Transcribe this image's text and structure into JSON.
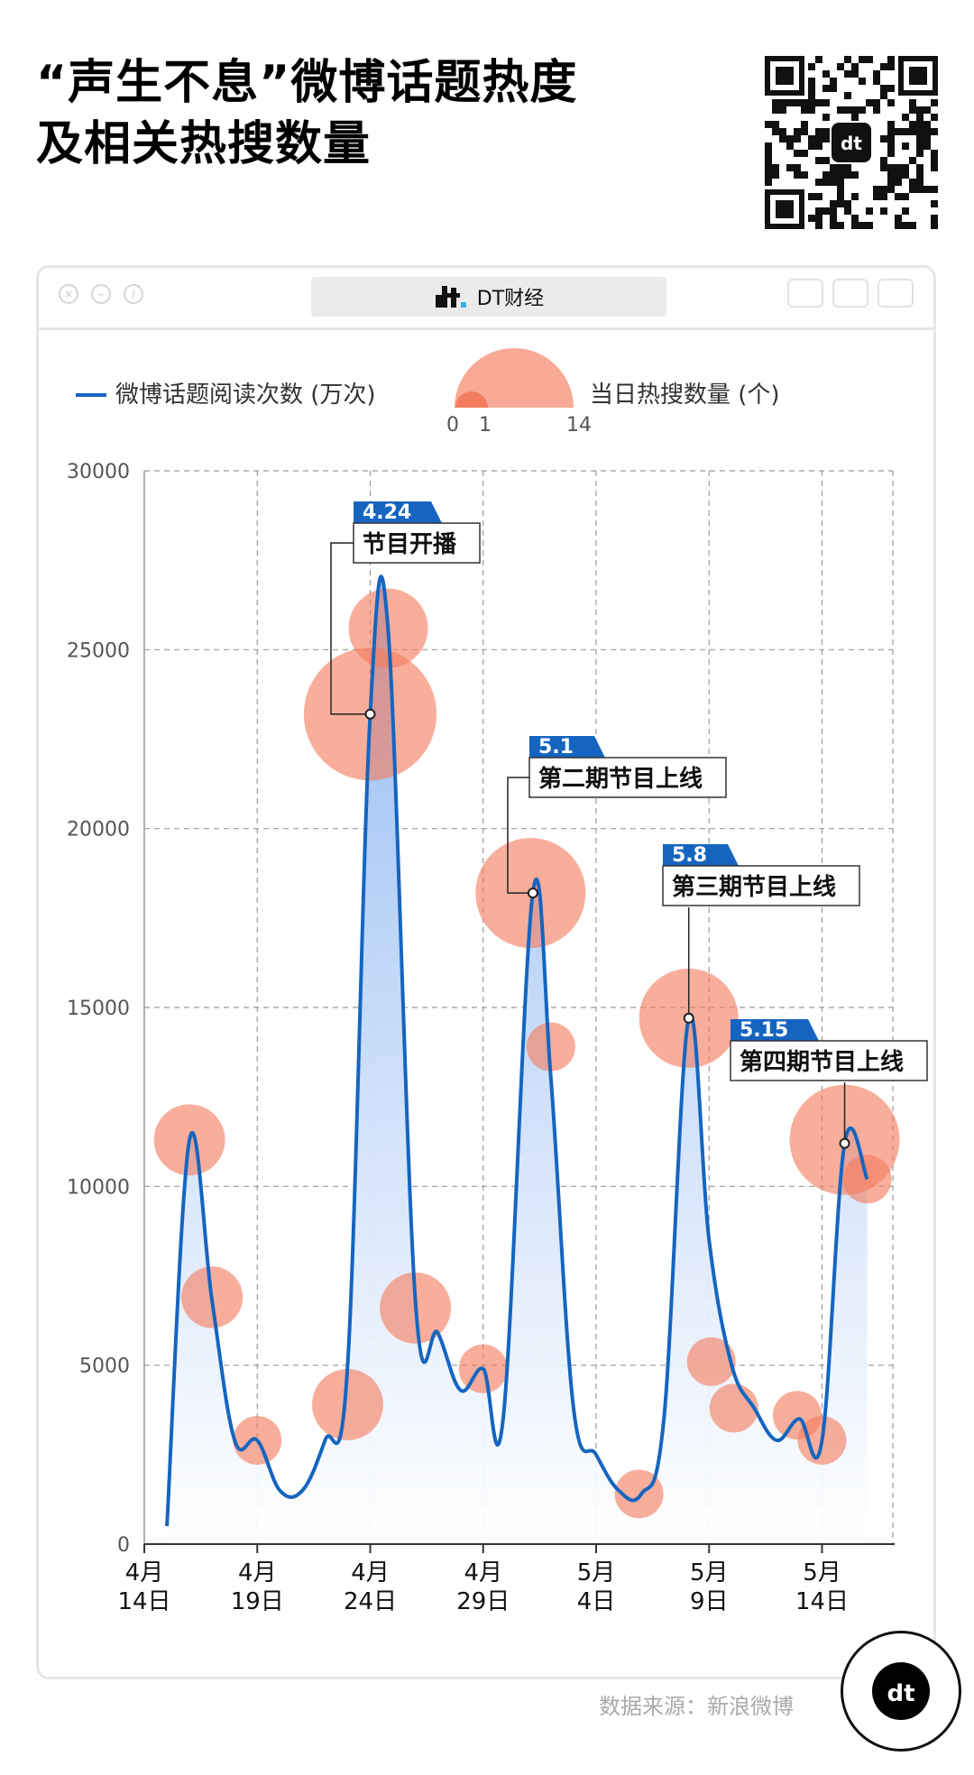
{
  "header": {
    "title_line1": "“声生不息”微博话题热度",
    "title_line2": "及相关热搜数量"
  },
  "window": {
    "tab_label": "DT财经",
    "brand_icon": "dt-logo-icon"
  },
  "source_note": "数据来源：新浪微博",
  "colors": {
    "line": "#1565c0",
    "area_top": "#8fb8f2",
    "area_bottom": "#ffffff",
    "bubble": "#f47c5e",
    "annotation": "#1565c0",
    "grid": "#9a9a9a"
  },
  "chart_data": {
    "type": "line",
    "legend": {
      "line_label": "微博话题阅读次数 (万次)",
      "bubble_label": "当日热搜数量 (个)",
      "bubble_scale": [
        "0",
        "1",
        "14"
      ]
    },
    "ylim": [
      0,
      30000
    ],
    "y_ticks": [
      "0",
      "5000",
      "10000",
      "15000",
      "20000",
      "25000",
      "30000"
    ],
    "x_ticks": [
      {
        "month": "4月",
        "day": "14日",
        "x": 0
      },
      {
        "month": "4月",
        "day": "19日",
        "x": 5
      },
      {
        "month": "4月",
        "day": "24日",
        "x": 10
      },
      {
        "month": "4月",
        "day": "29日",
        "x": 15
      },
      {
        "month": "5月",
        "day": "4日",
        "x": 20
      },
      {
        "month": "5月",
        "day": "9日",
        "x": 25
      },
      {
        "month": "5月",
        "day": "14日",
        "x": 30
      }
    ],
    "series": [
      {
        "name": "微博话题阅读次数 (万次)",
        "points": [
          [
            1,
            500
          ],
          [
            2,
            11300
          ],
          [
            3,
            6800
          ],
          [
            4,
            2900
          ],
          [
            5,
            2900
          ],
          [
            6,
            1500
          ],
          [
            7,
            1500
          ],
          [
            8,
            2900
          ],
          [
            9,
            5000
          ],
          [
            10,
            23200
          ],
          [
            10.8,
            25500
          ],
          [
            12,
            6800
          ],
          [
            13,
            5900
          ],
          [
            14,
            4300
          ],
          [
            15,
            4900
          ],
          [
            15.9,
            3600
          ],
          [
            17.2,
            18200
          ],
          [
            18,
            13000
          ],
          [
            19,
            3800
          ],
          [
            20,
            2500
          ],
          [
            21,
            1500
          ],
          [
            22,
            1400
          ],
          [
            23,
            3500
          ],
          [
            24.1,
            14700
          ],
          [
            25,
            8500
          ],
          [
            26,
            5000
          ],
          [
            27,
            3800
          ],
          [
            28,
            2900
          ],
          [
            29,
            3500
          ],
          [
            30,
            2900
          ],
          [
            31,
            11200
          ],
          [
            32,
            10200
          ]
        ]
      }
    ],
    "bubbles": [
      {
        "x": 2,
        "y": 11300,
        "count": 3
      },
      {
        "x": 3,
        "y": 6900,
        "count": 2
      },
      {
        "x": 5,
        "y": 2900,
        "count": 1
      },
      {
        "x": 9,
        "y": 3900,
        "count": 3
      },
      {
        "x": 10,
        "y": 23200,
        "count": 14
      },
      {
        "x": 10.8,
        "y": 25600,
        "count": 4
      },
      {
        "x": 12,
        "y": 6600,
        "count": 3
      },
      {
        "x": 15,
        "y": 4900,
        "count": 1
      },
      {
        "x": 17.1,
        "y": 18200,
        "count": 9
      },
      {
        "x": 18,
        "y": 13900,
        "count": 1
      },
      {
        "x": 21.9,
        "y": 1400,
        "count": 1
      },
      {
        "x": 24.1,
        "y": 14700,
        "count": 7
      },
      {
        "x": 25.1,
        "y": 5100,
        "count": 1
      },
      {
        "x": 26.1,
        "y": 3800,
        "count": 1
      },
      {
        "x": 28.9,
        "y": 3600,
        "count": 1
      },
      {
        "x": 30,
        "y": 2900,
        "count": 1
      },
      {
        "x": 31,
        "y": 11300,
        "count": 9
      },
      {
        "x": 32,
        "y": 10200,
        "count": 1
      }
    ],
    "annotations": [
      {
        "date": "4.24",
        "label": "节目开播",
        "x": 10,
        "y": 23200
      },
      {
        "date": "5.1",
        "label": "第二期节目上线",
        "x": 17.2,
        "y": 18200
      },
      {
        "date": "5.8",
        "label": "第三期节目上线",
        "x": 24.1,
        "y": 14700
      },
      {
        "date": "5.15",
        "label": "第四期节目上线",
        "x": 31,
        "y": 11200
      }
    ]
  }
}
